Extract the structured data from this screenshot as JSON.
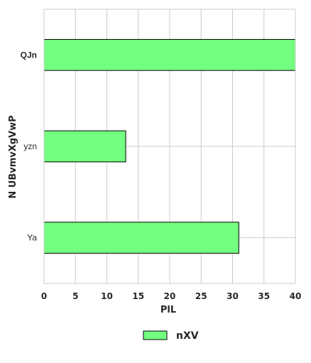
{
  "chart_data": {
    "type": "bar",
    "orientation": "horizontal",
    "categories": [
      "QJn",
      "yzn",
      "Ya"
    ],
    "series": [
      {
        "name": "nXV",
        "values": [
          40,
          13,
          31
        ],
        "color": "#73ff80"
      }
    ],
    "xlabel": "PlL",
    "ylabel": "N UBvmvXgVwP",
    "xlim": [
      0,
      40
    ],
    "xticks": [
      "0",
      "5",
      "10",
      "15",
      "20",
      "25",
      "30",
      "35",
      "40"
    ],
    "grid": true,
    "legend_position": "bottom-center"
  }
}
